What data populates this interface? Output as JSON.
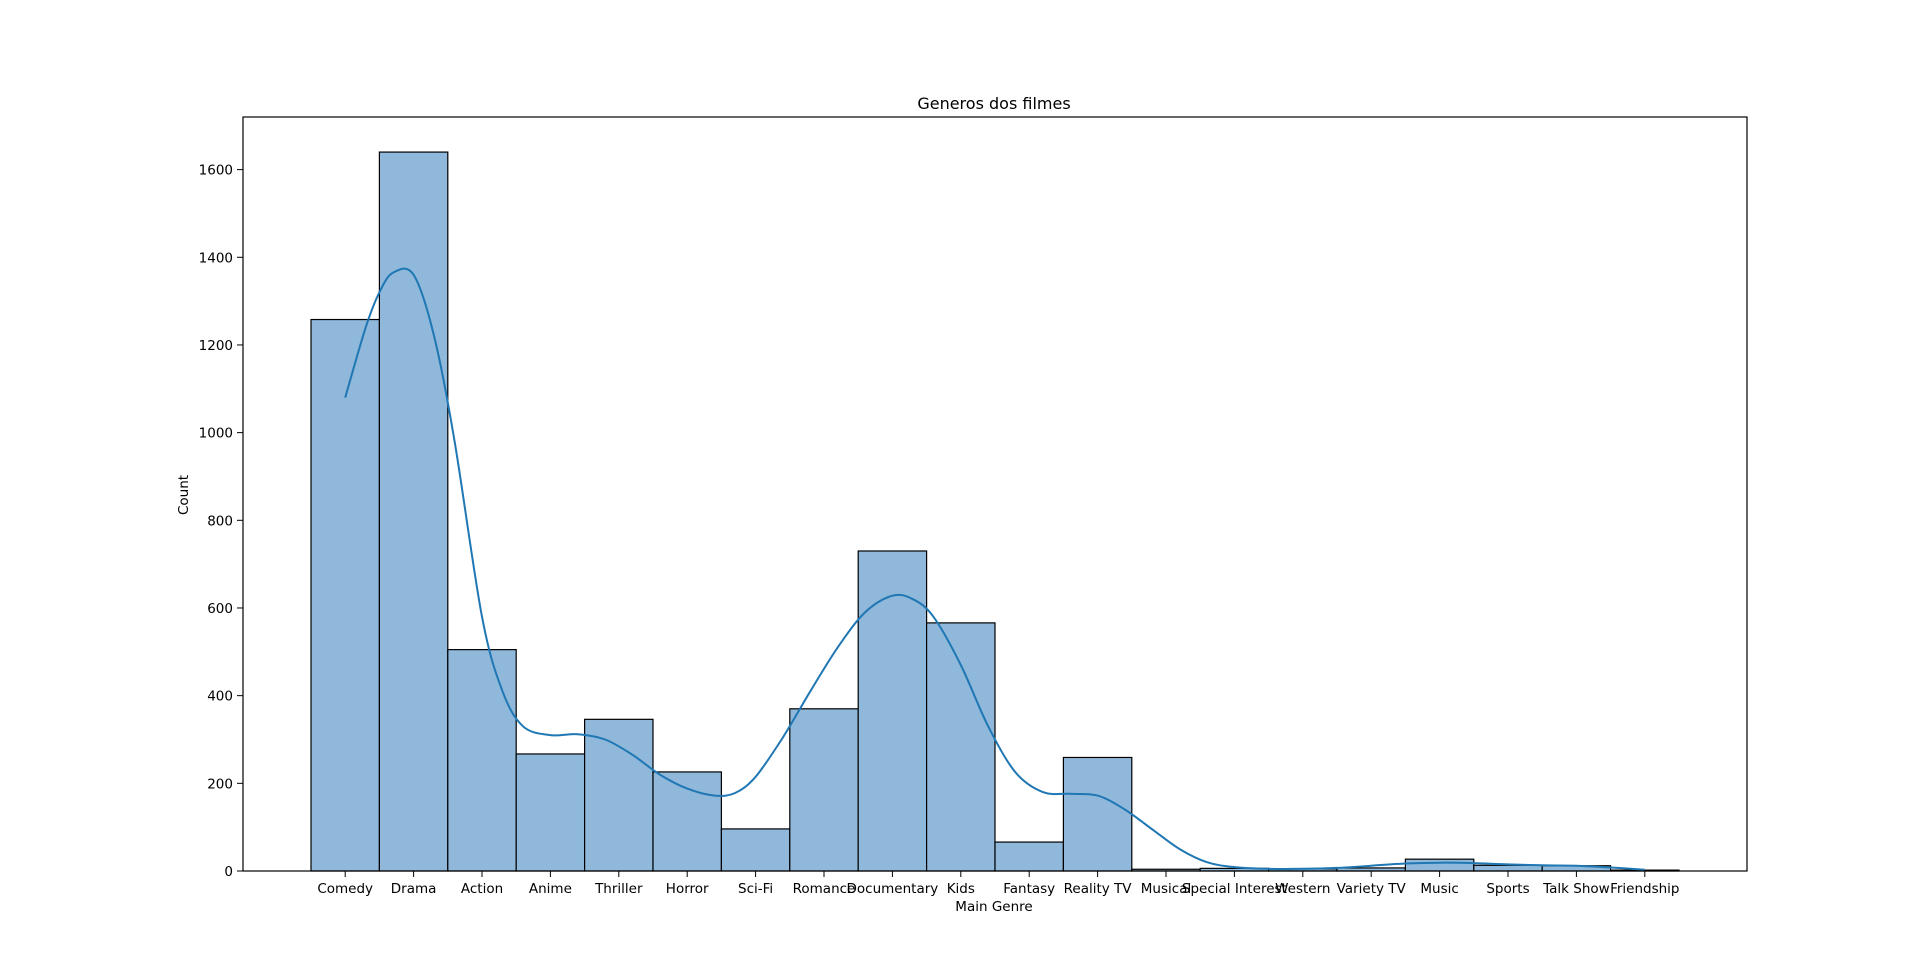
{
  "chart_data": {
    "type": "bar",
    "title": "Generos dos filmes",
    "xlabel": "Main Genre",
    "ylabel": "Count",
    "ylim": [
      0,
      1720
    ],
    "yticks": [
      0,
      200,
      400,
      600,
      800,
      1000,
      1200,
      1400,
      1600
    ],
    "grid": false,
    "legend": "none",
    "colors": {
      "bar_fill": "#8fb8da",
      "bar_edge": "#000000",
      "kde_line": "#1f77b4"
    },
    "categories": [
      "Comedy",
      "Drama",
      "Action",
      "Anime",
      "Thriller",
      "Horror",
      "Sci-Fi",
      "Romance",
      "Documentary",
      "Kids",
      "Fantasy",
      "Reality TV",
      "Musical",
      "Special Interest",
      "Western",
      "Variety TV",
      "Music",
      "Sports",
      "Talk Show",
      "Friendship"
    ],
    "values": [
      1258,
      1640,
      505,
      267,
      346,
      226,
      96,
      370,
      730,
      566,
      66,
      259,
      4,
      6,
      5,
      7,
      27,
      13,
      12,
      2
    ],
    "kde": {
      "x": [
        0,
        0.3,
        0.5,
        0.7,
        1.0,
        1.3,
        1.6,
        2.0,
        2.3,
        2.6,
        3.0,
        3.4,
        3.8,
        4.2,
        4.6,
        5.0,
        5.4,
        5.7,
        6.0,
        6.4,
        6.8,
        7.2,
        7.6,
        8.0,
        8.3,
        8.6,
        9.0,
        9.4,
        9.8,
        10.2,
        10.6,
        11.0,
        11.4,
        11.8,
        12.2,
        12.6,
        13.0,
        13.5,
        14.0,
        14.5,
        15.0,
        15.5,
        16.0,
        16.5,
        17.0,
        17.5,
        18.0,
        18.5,
        19.0
      ],
      "y": [
        1080,
        1240,
        1320,
        1365,
        1360,
        1220,
        980,
        580,
        410,
        330,
        310,
        312,
        300,
        265,
        220,
        188,
        172,
        178,
        215,
        305,
        410,
        510,
        590,
        628,
        620,
        580,
        470,
        330,
        225,
        180,
        176,
        172,
        140,
        95,
        50,
        20,
        9,
        5,
        5,
        7,
        12,
        17,
        19,
        18,
        15,
        13,
        12,
        8,
        3
      ]
    }
  }
}
